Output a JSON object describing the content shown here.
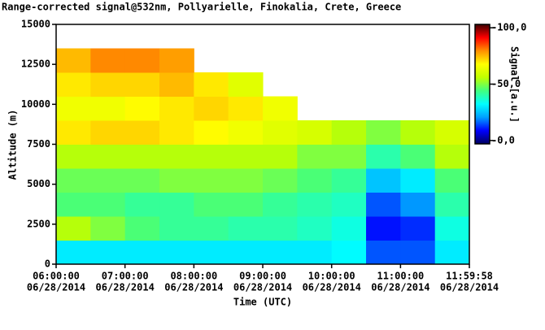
{
  "chart_data": {
    "type": "heatmap",
    "title": "Range-corrected signal@532nm, Pollyarielle, Finokalia, Crete, Greece",
    "xlabel": "Time (UTC)",
    "ylabel": "Altitude (m)",
    "colorbar_label": "Signal [a.u.]",
    "x": [
      6.25,
      6.75,
      7.25,
      7.75,
      8.25,
      8.75,
      9.25,
      9.75,
      10.25,
      10.75,
      11.25,
      11.75
    ],
    "y": [
      750,
      2250,
      3750,
      5250,
      6750,
      8250,
      9750,
      11250,
      12750,
      14250
    ],
    "z": [
      [
        30,
        30,
        30,
        30,
        30,
        30,
        30,
        30,
        32,
        15,
        15,
        30
      ],
      [
        55,
        50,
        45,
        42,
        42,
        40,
        40,
        38,
        35,
        10,
        12,
        35
      ],
      [
        45,
        45,
        42,
        42,
        45,
        45,
        42,
        40,
        38,
        15,
        20,
        40
      ],
      [
        48,
        48,
        48,
        50,
        50,
        50,
        48,
        45,
        42,
        25,
        30,
        45
      ],
      [
        55,
        55,
        55,
        55,
        55,
        55,
        55,
        50,
        50,
        40,
        45,
        55
      ],
      [
        70,
        72,
        72,
        70,
        68,
        65,
        62,
        60,
        55,
        50,
        55,
        60
      ],
      [
        65,
        65,
        68,
        70,
        72,
        70,
        65,
        null,
        null,
        null,
        null,
        null
      ],
      [
        70,
        72,
        72,
        75,
        70,
        62,
        null,
        null,
        null,
        null,
        null,
        null
      ],
      [
        75,
        80,
        80,
        78,
        null,
        null,
        null,
        null,
        null,
        null,
        null,
        null
      ],
      [
        null,
        null,
        null,
        null,
        null,
        null,
        null,
        null,
        null,
        null,
        null,
        null
      ]
    ],
    "xlim": [
      6,
      11.99944
    ],
    "ylim": [
      0,
      15000
    ],
    "xticks": [
      {
        "value": 6,
        "label": "06:00:00",
        "date": "06/28/2014"
      },
      {
        "value": 7,
        "label": "07:00:00",
        "date": "06/28/2014"
      },
      {
        "value": 8,
        "label": "08:00:00",
        "date": "06/28/2014"
      },
      {
        "value": 9,
        "label": "09:00:00",
        "date": "06/28/2014"
      },
      {
        "value": 10,
        "label": "10:00:00",
        "date": "06/28/2014"
      },
      {
        "value": 11,
        "label": "11:00:00",
        "date": "06/28/2014"
      },
      {
        "value": 11.99944,
        "label": "11:59:58",
        "date": "06/28/2014"
      }
    ],
    "yticks": [
      0,
      2500,
      5000,
      7500,
      10000,
      12500,
      15000
    ],
    "clim": [
      -3,
      103
    ],
    "cticks": [
      {
        "value": 0,
        "label": "-0,0"
      },
      {
        "value": 50,
        "label": "-50,0"
      },
      {
        "value": 100,
        "label": "-100,0"
      }
    ],
    "colormap": [
      "#000060",
      "#0000ff",
      "#00a0ff",
      "#00ffff",
      "#40ff80",
      "#c0ff00",
      "#ffff00",
      "#ff9000",
      "#ff0000",
      "#400000"
    ]
  }
}
